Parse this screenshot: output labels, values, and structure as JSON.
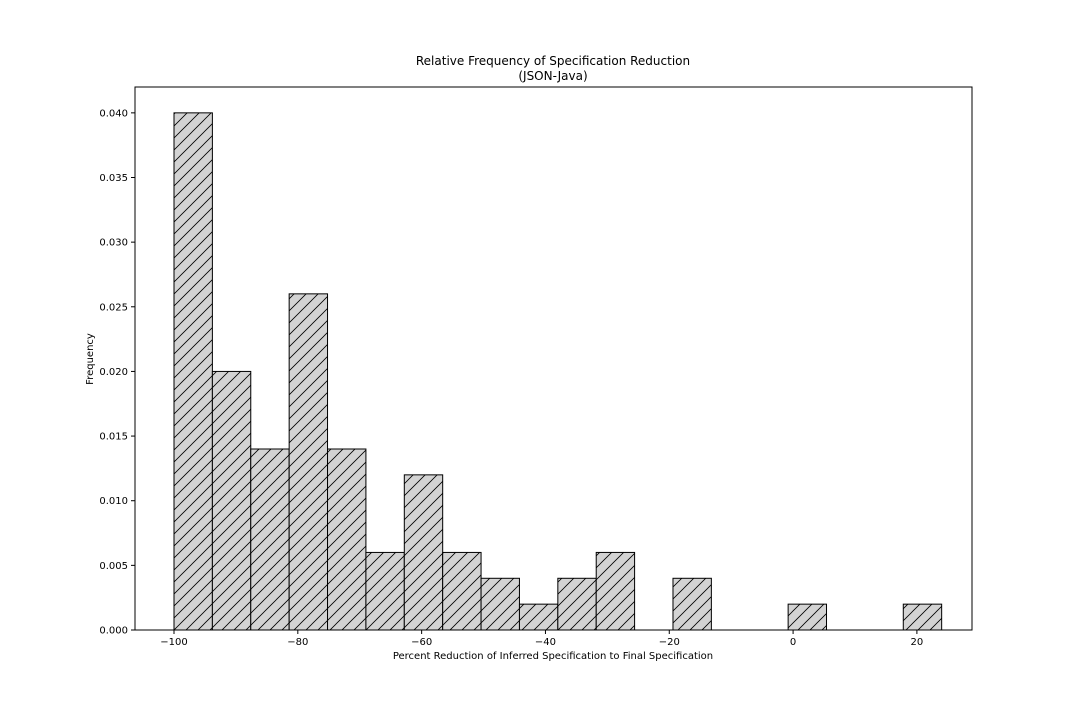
{
  "chart_data": {
    "type": "bar",
    "title": "Relative Frequency of Specification Reduction",
    "subtitle": "(JSON-Java)",
    "xlabel": "Percent Reduction of Inferred Specification to Final Specification",
    "ylabel": "Frequency",
    "xlim": [
      -106.3,
      28.9
    ],
    "ylim": [
      0,
      0.042
    ],
    "x_ticks": [
      -100,
      -80,
      -60,
      -40,
      -20,
      0,
      20
    ],
    "x_tick_labels": [
      "−100",
      "−80",
      "−60",
      "−40",
      "−20",
      "0",
      "20"
    ],
    "y_ticks": [
      0,
      0.005,
      0.01,
      0.015,
      0.02,
      0.025,
      0.03,
      0.035,
      0.04
    ],
    "y_tick_labels": [
      "0.000",
      "0.005",
      "0.010",
      "0.015",
      "0.020",
      "0.025",
      "0.030",
      "0.035",
      "0.040"
    ],
    "grid": false,
    "bar_style": {
      "fill": "#d3d3d3",
      "edge": "#000000",
      "hatch": "/"
    },
    "bins": [
      {
        "start": -100.0,
        "end": -93.8,
        "value": 0.04
      },
      {
        "start": -93.8,
        "end": -87.6,
        "value": 0.02
      },
      {
        "start": -87.6,
        "end": -81.4,
        "value": 0.014
      },
      {
        "start": -81.4,
        "end": -75.2,
        "value": 0.026
      },
      {
        "start": -75.2,
        "end": -69.0,
        "value": 0.014
      },
      {
        "start": -69.0,
        "end": -62.8,
        "value": 0.006
      },
      {
        "start": -62.8,
        "end": -56.6,
        "value": 0.012
      },
      {
        "start": -56.6,
        "end": -50.4,
        "value": 0.006
      },
      {
        "start": -50.4,
        "end": -44.2,
        "value": 0.004
      },
      {
        "start": -44.2,
        "end": -38.0,
        "value": 0.002
      },
      {
        "start": -38.0,
        "end": -31.8,
        "value": 0.004
      },
      {
        "start": -31.8,
        "end": -25.6,
        "value": 0.006
      },
      {
        "start": -19.4,
        "end": -13.2,
        "value": 0.004
      },
      {
        "start": -0.8,
        "end": 5.4,
        "value": 0.002
      },
      {
        "start": 17.8,
        "end": 24.0,
        "value": 0.002
      }
    ]
  }
}
